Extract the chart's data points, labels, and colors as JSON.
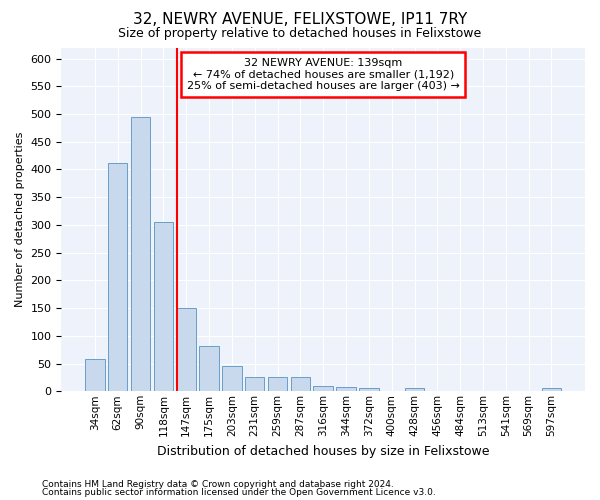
{
  "title": "32, NEWRY AVENUE, FELIXSTOWE, IP11 7RY",
  "subtitle": "Size of property relative to detached houses in Felixstowe",
  "xlabel": "Distribution of detached houses by size in Felixstowe",
  "ylabel": "Number of detached properties",
  "bar_color": "#c8d9ee",
  "bar_edge_color": "#6a9ec8",
  "background_color": "#eef2fb",
  "grid_color": "#ffffff",
  "categories": [
    "34sqm",
    "62sqm",
    "90sqm",
    "118sqm",
    "147sqm",
    "175sqm",
    "203sqm",
    "231sqm",
    "259sqm",
    "287sqm",
    "316sqm",
    "344sqm",
    "372sqm",
    "400sqm",
    "428sqm",
    "456sqm",
    "484sqm",
    "513sqm",
    "541sqm",
    "569sqm",
    "597sqm"
  ],
  "values": [
    58,
    412,
    494,
    306,
    150,
    82,
    45,
    25,
    25,
    25,
    10,
    8,
    5,
    0,
    5,
    0,
    0,
    0,
    0,
    0,
    5
  ],
  "ylim": [
    0,
    620
  ],
  "yticks": [
    0,
    50,
    100,
    150,
    200,
    250,
    300,
    350,
    400,
    450,
    500,
    550,
    600
  ],
  "red_line_index": 4,
  "annotation_title": "32 NEWRY AVENUE: 139sqm",
  "annotation_line1": "← 74% of detached houses are smaller (1,192)",
  "annotation_line2": "25% of semi-detached houses are larger (403) →",
  "footnote1": "Contains HM Land Registry data © Crown copyright and database right 2024.",
  "footnote2": "Contains public sector information licensed under the Open Government Licence v3.0.",
  "title_fontsize": 11,
  "subtitle_fontsize": 9,
  "ylabel_fontsize": 8,
  "xlabel_fontsize": 9,
  "tick_fontsize": 8,
  "xtick_fontsize": 7.5,
  "annot_fontsize": 8,
  "footnote_fontsize": 6.5
}
